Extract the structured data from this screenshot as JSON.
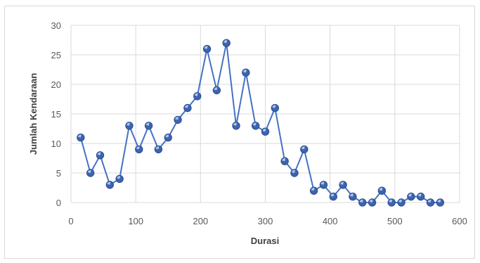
{
  "chart_data": {
    "type": "scatter",
    "title": "",
    "xlabel": "Durasi",
    "ylabel": "Jumlah Kendaraan",
    "xlim": [
      0,
      600
    ],
    "ylim": [
      0,
      30
    ],
    "xticks": [
      0,
      100,
      200,
      300,
      400,
      500,
      600
    ],
    "yticks": [
      0,
      5,
      10,
      15,
      20,
      25,
      30
    ],
    "grid": true,
    "legend": "none",
    "series_color": "#4472c4",
    "line": true,
    "x": [
      15,
      30,
      45,
      60,
      75,
      90,
      105,
      120,
      135,
      150,
      165,
      180,
      195,
      210,
      225,
      240,
      255,
      270,
      285,
      300,
      315,
      330,
      345,
      360,
      375,
      390,
      405,
      420,
      435,
      450,
      465,
      480,
      495,
      510,
      525,
      540,
      555,
      570
    ],
    "y": [
      11,
      5,
      8,
      3,
      4,
      13,
      9,
      13,
      9,
      11,
      14,
      16,
      18,
      26,
      19,
      27,
      13,
      22,
      13,
      12,
      16,
      7,
      5,
      9,
      2,
      3,
      1,
      3,
      1,
      0,
      0,
      2,
      0,
      0,
      1,
      1,
      0,
      0
    ]
  }
}
